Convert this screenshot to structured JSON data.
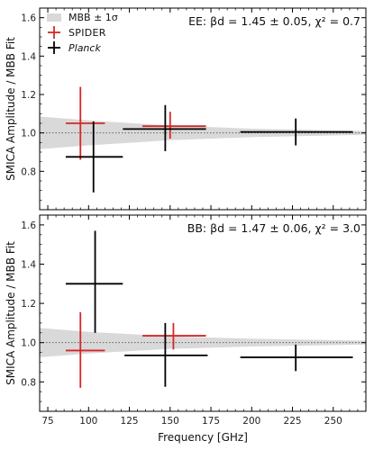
{
  "chart_data": {
    "type": "errorbar",
    "shared_x": {
      "label": "Frequency [GHz]",
      "lim": [
        70,
        270
      ],
      "ticks": [
        75,
        100,
        125,
        150,
        175,
        200,
        225,
        250
      ],
      "tick_labels": [
        "75",
        "100",
        "125",
        "150",
        "175",
        "200",
        "225",
        "250"
      ]
    },
    "legend": {
      "placement": "top-left",
      "entries": [
        {
          "key": "band",
          "label": "MBB ± 1σ"
        },
        {
          "key": "spider",
          "label": "SPIDER"
        },
        {
          "key": "planck",
          "label": "Planck"
        }
      ]
    },
    "reference_line": {
      "y": 1.0,
      "style": "dotted"
    },
    "colors": {
      "spider": "#d62728",
      "planck": "#000000",
      "band": "#d9d9d9"
    },
    "panels": [
      {
        "id": "ee",
        "ylabel": "SMICA Amplitude / MBB Fit",
        "ylim": [
          0.6,
          1.65
        ],
        "yticks": [
          0.8,
          1.0,
          1.2,
          1.4,
          1.6
        ],
        "ytick_labels": [
          "0.8",
          "1.0",
          "1.2",
          "1.4",
          "1.6"
        ],
        "annotation": "EE: βd = 1.45 ± 0.05, χ² = 0.7",
        "band": {
          "x": [
            70,
            100,
            150,
            200,
            270
          ],
          "lo": [
            0.915,
            0.935,
            0.962,
            0.978,
            0.99
          ],
          "hi": [
            1.085,
            1.065,
            1.038,
            1.022,
            1.01
          ]
        },
        "series": [
          {
            "key": "spider",
            "name": "SPIDER",
            "points": [
              {
                "x": 95,
                "y": 1.05,
                "xlo": 86,
                "xhi": 110,
                "ylo": 0.86,
                "yhi": 1.24
              },
              {
                "x": 150,
                "y": 1.035,
                "xlo": 133,
                "xhi": 172,
                "ylo": 0.97,
                "yhi": 1.11
              }
            ]
          },
          {
            "key": "planck",
            "name": "Planck",
            "points": [
              {
                "x": 103,
                "y": 0.875,
                "xlo": 86,
                "xhi": 121,
                "ylo": 0.69,
                "yhi": 1.06
              },
              {
                "x": 147,
                "y": 1.02,
                "xlo": 121,
                "xhi": 172,
                "ylo": 0.905,
                "yhi": 1.145
              },
              {
                "x": 227,
                "y": 1.005,
                "xlo": 193,
                "xhi": 262,
                "ylo": 0.935,
                "yhi": 1.075
              }
            ]
          }
        ]
      },
      {
        "id": "bb",
        "ylabel": "SMICA Amplitude / MBB Fit",
        "ylim": [
          0.65,
          1.65
        ],
        "yticks": [
          0.8,
          1.0,
          1.2,
          1.4,
          1.6
        ],
        "ytick_labels": [
          "0.8",
          "1.0",
          "1.2",
          "1.4",
          "1.6"
        ],
        "annotation": "BB: βd = 1.47 ± 0.06, χ² = 3.0",
        "band": {
          "x": [
            70,
            100,
            150,
            200,
            270
          ],
          "lo": [
            0.925,
            0.945,
            0.968,
            0.98,
            0.99
          ],
          "hi": [
            1.075,
            1.055,
            1.032,
            1.02,
            1.01
          ]
        },
        "series": [
          {
            "key": "spider",
            "name": "SPIDER",
            "points": [
              {
                "x": 95,
                "y": 0.96,
                "xlo": 86,
                "xhi": 110,
                "ylo": 0.77,
                "yhi": 1.155
              },
              {
                "x": 152,
                "y": 1.035,
                "xlo": 133,
                "xhi": 172,
                "ylo": 0.965,
                "yhi": 1.1
              }
            ]
          },
          {
            "key": "planck",
            "name": "Planck",
            "points": [
              {
                "x": 104,
                "y": 1.3,
                "xlo": 86,
                "xhi": 121,
                "ylo": 1.05,
                "yhi": 1.57
              },
              {
                "x": 147,
                "y": 0.935,
                "xlo": 122,
                "xhi": 173,
                "ylo": 0.775,
                "yhi": 1.1
              },
              {
                "x": 227,
                "y": 0.925,
                "xlo": 193,
                "xhi": 262,
                "ylo": 0.855,
                "yhi": 0.99
              }
            ]
          }
        ]
      }
    ]
  }
}
